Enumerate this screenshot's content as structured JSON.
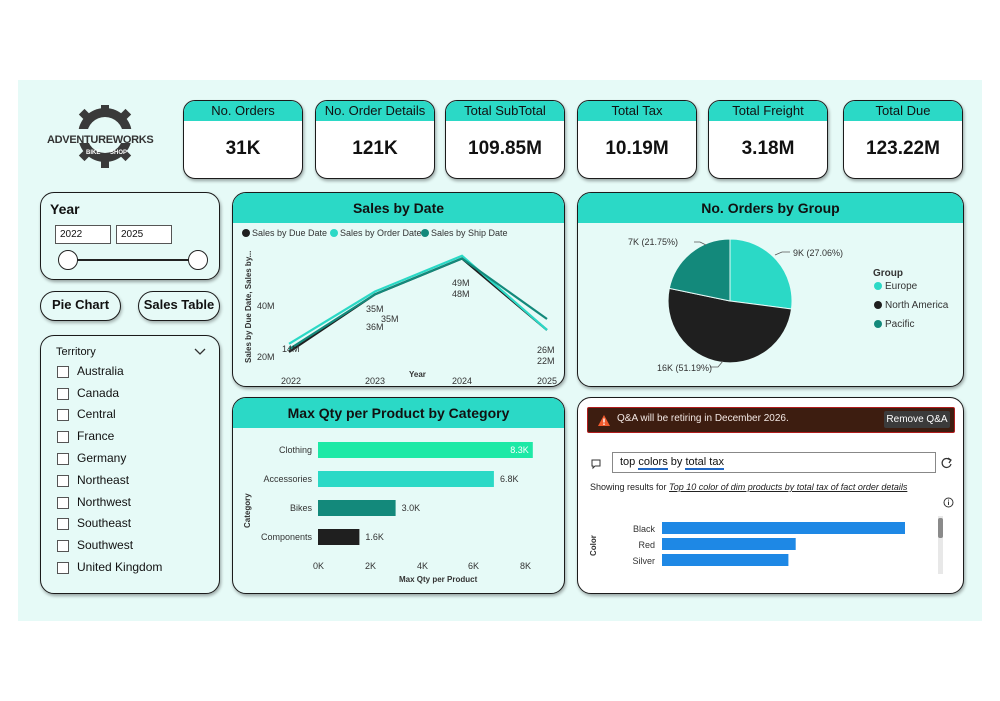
{
  "kpis": [
    {
      "label": "No. Orders",
      "value": "31K"
    },
    {
      "label": "No. Order Details",
      "value": "121K"
    },
    {
      "label": "Total SubTotal",
      "value": "109.85M"
    },
    {
      "label": "Total Tax",
      "value": "10.19M"
    },
    {
      "label": "Total Freight",
      "value": "3.18M"
    },
    {
      "label": "Total Due",
      "value": "123.22M"
    }
  ],
  "logo": {
    "text_left": "ADVENTURE",
    "text_right": "WORKS",
    "badge_left": "BIKE",
    "badge_right": "SHOP"
  },
  "year_slicer": {
    "title": "Year",
    "from": "2022",
    "to": "2025"
  },
  "buttons": {
    "pie": "Pie Chart",
    "table": "Sales Table"
  },
  "territory": {
    "title": "Territory",
    "items": [
      "Australia",
      "Canada",
      "Central",
      "France",
      "Germany",
      "Northeast",
      "Northwest",
      "Southeast",
      "Southwest",
      "United Kingdom"
    ]
  },
  "sales_by_date": {
    "title": "Sales by Date",
    "legend": [
      "Sales by Due Date",
      "Sales by Order Date",
      "Sales by Ship Date"
    ],
    "ylabel": "Sales by Due Date, Sales by...",
    "xlabel": "Year",
    "yticks": [
      "40M",
      "20M"
    ],
    "point_labels": [
      "14M",
      "35M",
      "35M",
      "36M",
      "49M",
      "48M",
      "26M",
      "22M"
    ]
  },
  "orders_by_group": {
    "title": "No. Orders by Group",
    "legend_title": "Group",
    "slice_labels": [
      "9K (27.06%)",
      "16K (51.19%)",
      "7K (21.75%)"
    ]
  },
  "max_qty": {
    "title": "Max Qty per Product by Category",
    "ylabel": "Category",
    "xlabel": "Max Qty per Product",
    "xticks": [
      "0K",
      "2K",
      "4K",
      "6K",
      "8K"
    ],
    "bar_labels": [
      "8.3K",
      "6.8K",
      "3.0K",
      "1.6K"
    ]
  },
  "qa": {
    "banner": "Q&A will be retiring in December 2026.",
    "remove_btn": "Remove Q&A",
    "query_prefix": "top ",
    "query_w1": "colors",
    "query_mid": " by ",
    "query_w2": "total tax",
    "results_prefix": "Showing results for ",
    "results_link": "Top 10 color of dim products by total tax of fact order details",
    "color_axis": "Color"
  },
  "chart_data": [
    {
      "type": "line",
      "title": "Sales by Date",
      "x": [
        2022,
        2023,
        2024,
        2025
      ],
      "xlabel": "Year",
      "ylabel": "Sales by Due Date, Sales by...",
      "ylim": [
        10,
        50
      ],
      "series": [
        {
          "name": "Sales by Due Date",
          "values": [
            14,
            35,
            48,
            22
          ],
          "color": "#1f1f1f"
        },
        {
          "name": "Sales by Order Date",
          "values": [
            17,
            36,
            49,
            22
          ],
          "color": "#2bd9c6"
        },
        {
          "name": "Sales by Ship Date",
          "values": [
            15,
            35,
            48,
            26
          ],
          "color": "#13897b"
        }
      ]
    },
    {
      "type": "pie",
      "title": "No. Orders by Group",
      "categories": [
        "Europe",
        "North America",
        "Pacific"
      ],
      "values": [
        27.06,
        51.19,
        21.75
      ],
      "colors": [
        "#2bd9c6",
        "#1f1f1f",
        "#13897b"
      ]
    },
    {
      "type": "bar",
      "title": "Max Qty per Product by Category",
      "categories": [
        "Clothing",
        "Accessories",
        "Bikes",
        "Components"
      ],
      "values": [
        8.3,
        6.8,
        3.0,
        1.6
      ],
      "xlabel": "Max Qty per Product",
      "ylabel": "Category",
      "xlim": [
        0,
        8
      ],
      "colors": [
        "#1de9a6",
        "#2bd9c6",
        "#13897b",
        "#1f1f1f"
      ]
    },
    {
      "type": "bar",
      "categories": [
        "Black",
        "Red",
        "Silver"
      ],
      "values": [
        1.0,
        0.55,
        0.52
      ],
      "color": "#1e88e5",
      "ylabel": "Color"
    }
  ]
}
